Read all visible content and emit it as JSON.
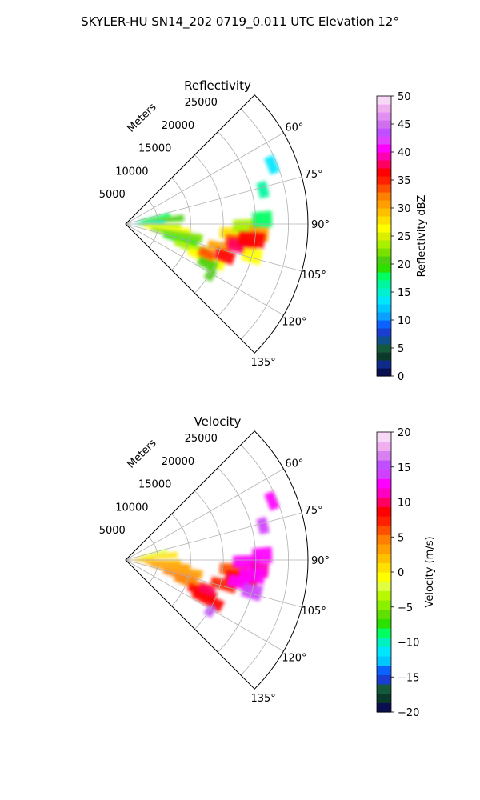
{
  "suptitle": "SKYLER-HU  SN14_202  0719_0.011 UTC Elevation 12°",
  "chart_data": [
    {
      "type": "heatmap",
      "title": "Reflectivity",
      "projection": "polar sector (PPI)",
      "range_label": "Meters",
      "range_ticks": [
        5000,
        10000,
        15000,
        20000,
        25000
      ],
      "range_tick_labels": [
        "5000",
        "10000",
        "15000",
        "20000",
        "25000"
      ],
      "range_lim": [
        0,
        28000
      ],
      "azimuth_lim_deg": [
        45,
        135
      ],
      "azimuth_ticks_deg": [
        60,
        75,
        90,
        105,
        120,
        135
      ],
      "azimuth_tick_labels": [
        "60°",
        "75°",
        "90°",
        "105°",
        "120°",
        "135°"
      ],
      "grid": true,
      "colorbar": {
        "label": "Reflectivity dBZ",
        "range": [
          0,
          50
        ],
        "ticks": [
          0,
          5,
          10,
          15,
          20,
          25,
          30,
          35,
          40,
          45,
          50
        ],
        "tick_labels": [
          "0",
          "5",
          "10",
          "15",
          "20",
          "25",
          "30",
          "35",
          "40",
          "45",
          "50"
        ],
        "colors": [
          "#0a0f50",
          "#102a8a",
          "#0b3a2a",
          "#145a3a",
          "#0f4f8a",
          "#1a3fd0",
          "#0a62ff",
          "#0aa0ff",
          "#00c8ff",
          "#00e6ff",
          "#00f0d0",
          "#00f5a0",
          "#00ff60",
          "#2ce000",
          "#4ad010",
          "#7ae000",
          "#a8f000",
          "#d8f000",
          "#ffff00",
          "#ffe000",
          "#ffc000",
          "#ffa000",
          "#ff8000",
          "#ff5000",
          "#ff2000",
          "#ff0000",
          "#ff0060",
          "#ff00b0",
          "#ff00ff",
          "#e040ff",
          "#c050ff",
          "#d070f0",
          "#e090f0",
          "#f0b0f0",
          "#f8d8f8"
        ]
      },
      "echo_cells": [
        {
          "az": 79,
          "r": [
            2000,
            7000
          ],
          "v": 18
        },
        {
          "az": 84,
          "r": [
            2500,
            9000
          ],
          "v": 21
        },
        {
          "az": 88,
          "r": [
            1500,
            6000
          ],
          "v": 14
        },
        {
          "az": 93,
          "r": [
            2000,
            8500
          ],
          "v": 24
        },
        {
          "az": 97,
          "r": [
            3000,
            10000
          ],
          "v": 26
        },
        {
          "az": 101,
          "r": [
            4000,
            12000
          ],
          "v": 22
        },
        {
          "az": 106,
          "r": [
            6000,
            11500
          ],
          "v": 19
        },
        {
          "az": 110,
          "r": [
            8000,
            13500
          ],
          "v": 23
        },
        {
          "az": 113,
          "r": [
            10500,
            16500
          ],
          "v": 27
        },
        {
          "az": 116,
          "r": [
            12500,
            15500
          ],
          "v": 21
        },
        {
          "az": 110,
          "r": [
            12000,
            14500
          ],
          "v": 34
        },
        {
          "az": 104,
          "r": [
            13000,
            16500
          ],
          "v": 30
        },
        {
          "az": 108,
          "r": [
            14500,
            17500
          ],
          "v": 36
        },
        {
          "az": 95,
          "r": [
            14500,
            19000
          ],
          "v": 28
        },
        {
          "az": 99,
          "r": [
            15500,
            20500
          ],
          "v": 33
        },
        {
          "az": 101,
          "r": [
            16000,
            19500
          ],
          "v": 38
        },
        {
          "az": 91,
          "r": [
            16500,
            20500
          ],
          "v": 24
        },
        {
          "az": 94,
          "r": [
            19000,
            22000
          ],
          "v": 30
        },
        {
          "az": 97,
          "r": [
            17500,
            21500
          ],
          "v": 36
        },
        {
          "az": 104,
          "r": [
            18500,
            21500
          ],
          "v": 27
        },
        {
          "az": 88,
          "r": [
            19500,
            22500
          ],
          "v": 18
        },
        {
          "az": 76,
          "r": [
            21000,
            22500
          ],
          "v": 16
        },
        {
          "az": 68,
          "r": [
            23500,
            25000
          ],
          "v": 14
        },
        {
          "az": 121,
          "r": [
            14500,
            15800
          ],
          "v": 20
        }
      ]
    },
    {
      "type": "heatmap",
      "title": "Velocity",
      "projection": "polar sector (PPI)",
      "range_label": "Meters",
      "range_ticks": [
        5000,
        10000,
        15000,
        20000,
        25000
      ],
      "range_tick_labels": [
        "5000",
        "10000",
        "15000",
        "20000",
        "25000"
      ],
      "range_lim": [
        0,
        28000
      ],
      "azimuth_lim_deg": [
        45,
        135
      ],
      "azimuth_ticks_deg": [
        60,
        75,
        90,
        105,
        120,
        135
      ],
      "azimuth_tick_labels": [
        "60°",
        "75°",
        "90°",
        "105°",
        "120°",
        "135°"
      ],
      "grid": true,
      "colorbar": {
        "label": "Velocity (m/s)",
        "range": [
          -20,
          20
        ],
        "ticks": [
          -20,
          -15,
          -10,
          -5,
          0,
          5,
          10,
          15,
          20
        ],
        "tick_labels": [
          "−20",
          "−15",
          "−10",
          "−5",
          "0",
          "5",
          "10",
          "15",
          "20"
        ],
        "colors": [
          "#0a0f50",
          "#0b3a2a",
          "#145a3a",
          "#1a3fd0",
          "#0a62ff",
          "#00c8ff",
          "#00e6ff",
          "#00f0c0",
          "#00ff60",
          "#2ce000",
          "#60e000",
          "#8af000",
          "#b8f800",
          "#e0ff40",
          "#ffff00",
          "#ffe000",
          "#ffc000",
          "#ffa000",
          "#ff8000",
          "#ff5000",
          "#ff2000",
          "#ff0000",
          "#ff0060",
          "#ff00c0",
          "#ff00ff",
          "#d040ff",
          "#c050ff",
          "#d880f0",
          "#f0b0f0",
          "#f8d8f8"
        ]
      },
      "echo_cells": [
        {
          "az": 79,
          "r": [
            2500,
            6500
          ],
          "v": -2
        },
        {
          "az": 84,
          "r": [
            2000,
            8000
          ],
          "v": 1
        },
        {
          "az": 88,
          "r": [
            1000,
            4500
          ],
          "v": 0
        },
        {
          "az": 93,
          "r": [
            1500,
            8500
          ],
          "v": 2
        },
        {
          "az": 97,
          "r": [
            3000,
            10000
          ],
          "v": 3
        },
        {
          "az": 101,
          "r": [
            4000,
            12000
          ],
          "v": 3
        },
        {
          "az": 106,
          "r": [
            6000,
            11500
          ],
          "v": 4
        },
        {
          "az": 110,
          "r": [
            8000,
            13500
          ],
          "v": 5
        },
        {
          "az": 113,
          "r": [
            10500,
            15000
          ],
          "v": 8
        },
        {
          "az": 116,
          "r": [
            11500,
            16500
          ],
          "v": 9
        },
        {
          "az": 110,
          "r": [
            12000,
            14500
          ],
          "v": 10
        },
        {
          "az": 104,
          "r": [
            13500,
            17500
          ],
          "v": 7
        },
        {
          "az": 95,
          "r": [
            14500,
            19000
          ],
          "v": 6
        },
        {
          "az": 99,
          "r": [
            15500,
            20500
          ],
          "v": 9
        },
        {
          "az": 101,
          "r": [
            16000,
            19500
          ],
          "v": 12
        },
        {
          "az": 91,
          "r": [
            16500,
            20500
          ],
          "v": 12
        },
        {
          "az": 94,
          "r": [
            19000,
            22000
          ],
          "v": 11
        },
        {
          "az": 97,
          "r": [
            17500,
            21500
          ],
          "v": 13
        },
        {
          "az": 104,
          "r": [
            18500,
            21500
          ],
          "v": 14
        },
        {
          "az": 88,
          "r": [
            19500,
            22500
          ],
          "v": 13
        },
        {
          "az": 76,
          "r": [
            21000,
            22500
          ],
          "v": 14
        },
        {
          "az": 68,
          "r": [
            23500,
            25000
          ],
          "v": 13
        },
        {
          "az": 121,
          "r": [
            14500,
            15800
          ],
          "v": 15
        }
      ]
    }
  ]
}
